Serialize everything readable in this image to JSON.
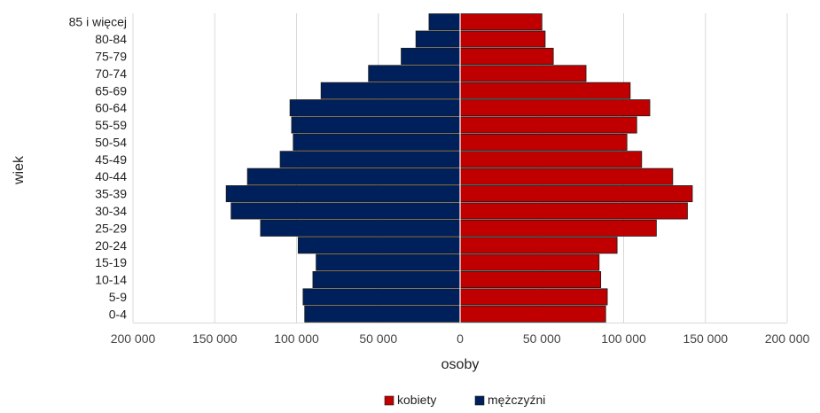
{
  "chart_data": {
    "type": "bar",
    "orientation": "horizontal",
    "layout": "population-pyramid",
    "xlabel": "osoby",
    "ylabel": "wiek",
    "xlim": [
      -200000,
      200000
    ],
    "x_ticks": [
      -200000,
      -150000,
      -100000,
      -50000,
      0,
      50000,
      100000,
      150000,
      200000
    ],
    "x_tick_labels": [
      "200 000",
      "150 000",
      "100 000",
      "50 000",
      "0",
      "50 000",
      "100 000",
      "150 000",
      "200 000"
    ],
    "grid": true,
    "legend_position": "bottom",
    "categories": [
      "0-4",
      "5-9",
      "10-14",
      "15-19",
      "20-24",
      "25-29",
      "30-34",
      "35-39",
      "40-44",
      "45-49",
      "50-54",
      "55-59",
      "60-64",
      "65-69",
      "70-74",
      "75-79",
      "80-84",
      "85 i więcej"
    ],
    "series": [
      {
        "name": "kobiety",
        "color": "#c00000",
        "side": "right",
        "values": [
          89000,
          90000,
          86000,
          85000,
          96000,
          120000,
          139000,
          142000,
          130000,
          111000,
          102000,
          108000,
          116000,
          104000,
          77000,
          57000,
          52000,
          50000
        ]
      },
      {
        "name": "mężczyźni",
        "color": "#00205b",
        "side": "left",
        "values": [
          95000,
          96000,
          90000,
          88000,
          99000,
          122000,
          140000,
          143000,
          130000,
          110000,
          102000,
          103000,
          104000,
          85000,
          56000,
          36000,
          27000,
          19000
        ]
      }
    ]
  }
}
